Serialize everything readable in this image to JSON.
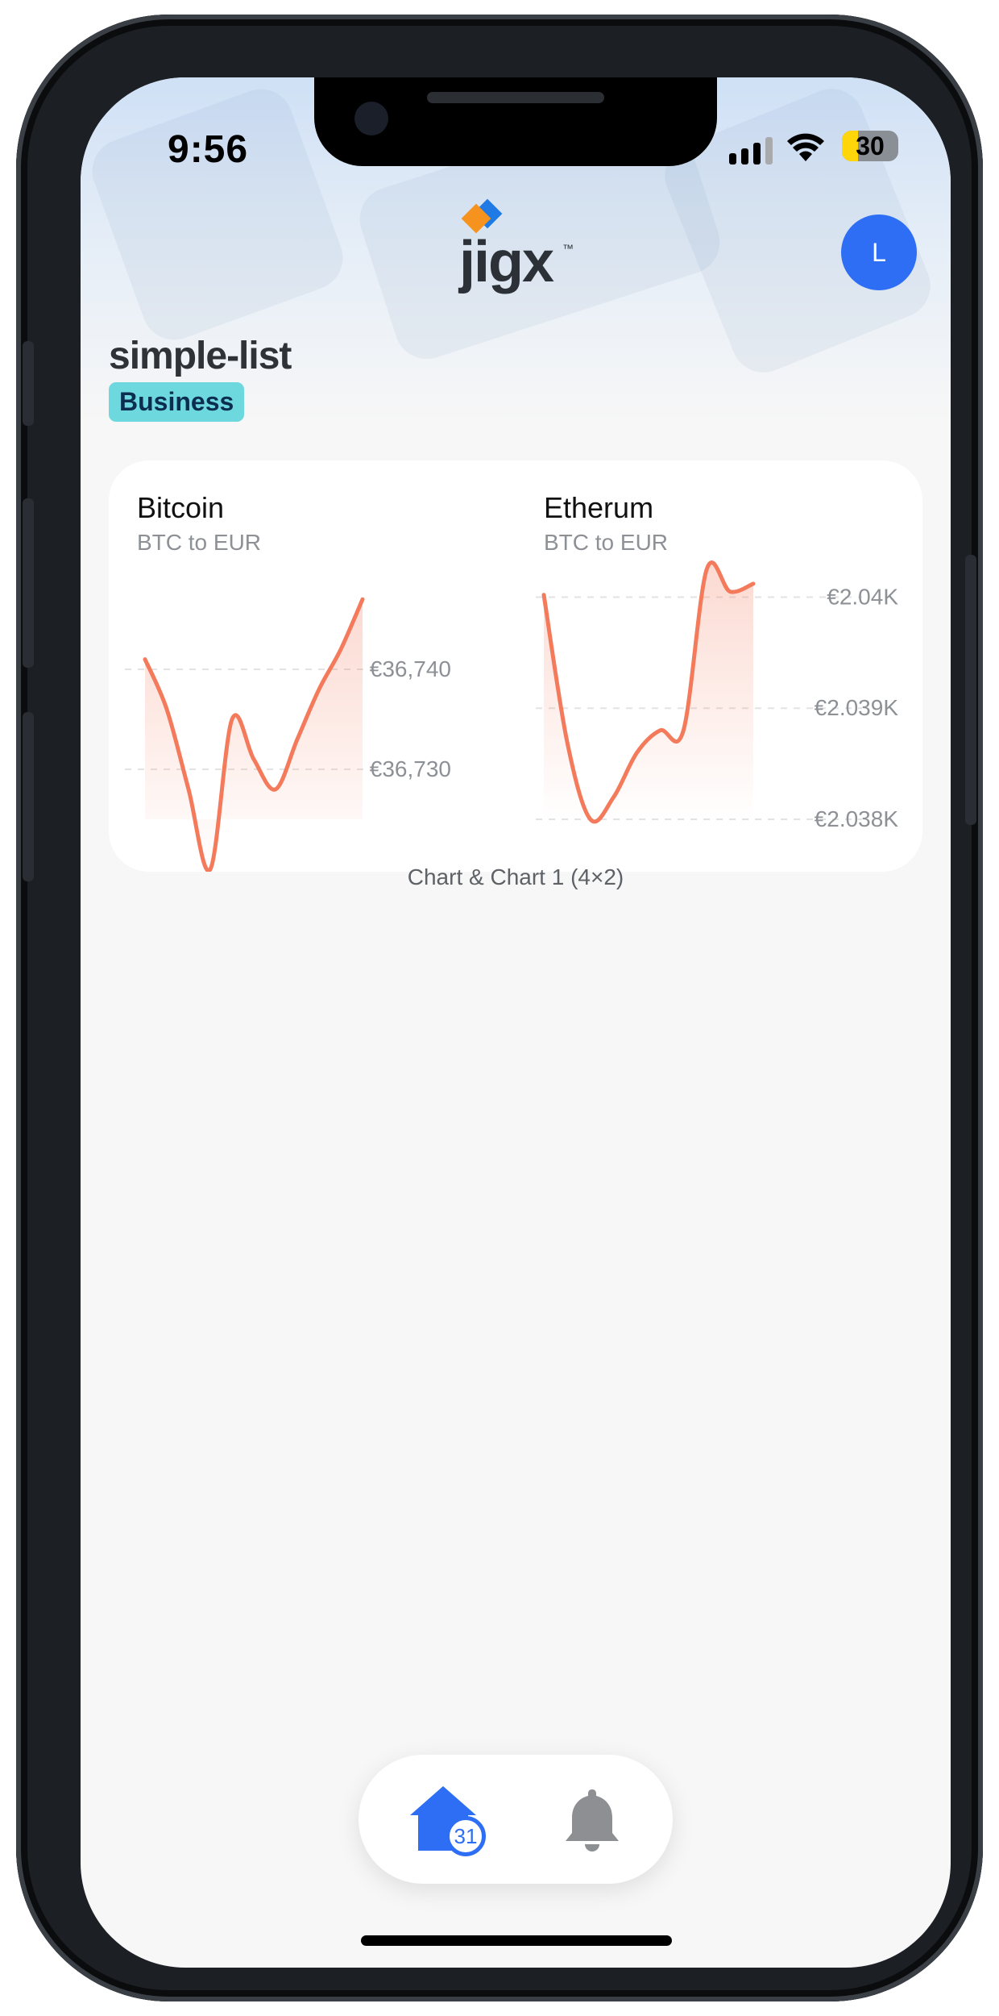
{
  "status_bar": {
    "time": "9:56",
    "battery": "30"
  },
  "header": {
    "logo_text": "jigx",
    "logo_tm": "™",
    "avatar_initial": "L"
  },
  "page": {
    "title": "simple-list",
    "tag": "Business"
  },
  "colors": {
    "accent": "#2d6ef5",
    "line": "#f47a5c",
    "tag_bg": "#6ed8df"
  },
  "charts": [
    {
      "title": "Bitcoin",
      "subtitle": "BTC to EUR",
      "y_ticks": [
        "€36,740",
        "€36,730"
      ]
    },
    {
      "title": "Etherum",
      "subtitle": "BTC to EUR",
      "y_ticks": [
        "€2.04K",
        "€2.039K",
        "€2.038K"
      ]
    }
  ],
  "chart_data": [
    {
      "type": "area",
      "title": "Bitcoin",
      "subtitle": "BTC to EUR",
      "y_ticks": [
        36740,
        36730
      ],
      "series": [
        {
          "values": [
            36741,
            36736,
            36728,
            36720,
            36735,
            36731,
            36728,
            36733,
            36738,
            36742,
            36747
          ]
        }
      ]
    },
    {
      "type": "area",
      "title": "Etherum",
      "subtitle": "BTC to EUR",
      "y_ticks": [
        2040,
        2039,
        2038
      ],
      "series": [
        {
          "values": [
            2040.02,
            2038.7,
            2038.0,
            2038.2,
            2038.6,
            2038.8,
            2038.8,
            2040.25,
            2040.05,
            2040.12
          ]
        }
      ]
    }
  ],
  "caption": "Chart & Chart 1 (4×2)",
  "nav": {
    "home_label": "home-icon",
    "bell_label": "bell-icon",
    "home_badge": "31"
  }
}
